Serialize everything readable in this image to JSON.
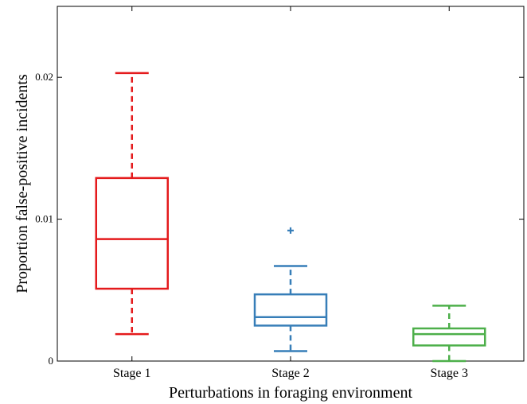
{
  "chart_data": {
    "type": "box",
    "title": "",
    "xlabel": "Perturbations in foraging environment",
    "ylabel": "Proportion false-positive incidents",
    "ylim": [
      0,
      0.025
    ],
    "yticks": [
      0,
      0.01,
      0.02
    ],
    "ytick_labels": [
      "0",
      "0.01",
      "0.02"
    ],
    "grid": false,
    "legend": "none",
    "categories": [
      "Stage 1",
      "Stage 2",
      "Stage 3"
    ],
    "series": [
      {
        "category": "Stage 1",
        "color": "#e41a1c",
        "whisker_low": 0.0019,
        "q1": 0.0051,
        "median": 0.0086,
        "q3": 0.0129,
        "whisker_high": 0.0203,
        "outliers": []
      },
      {
        "category": "Stage 2",
        "color": "#377eb8",
        "whisker_low": 0.0007,
        "q1": 0.0025,
        "median": 0.0031,
        "q3": 0.0047,
        "whisker_high": 0.0067,
        "outliers": [
          0.0092
        ]
      },
      {
        "category": "Stage 3",
        "color": "#4daf4a",
        "whisker_low": 0.0,
        "q1": 0.0011,
        "median": 0.0019,
        "q3": 0.0023,
        "whisker_high": 0.0039,
        "outliers": []
      }
    ]
  }
}
